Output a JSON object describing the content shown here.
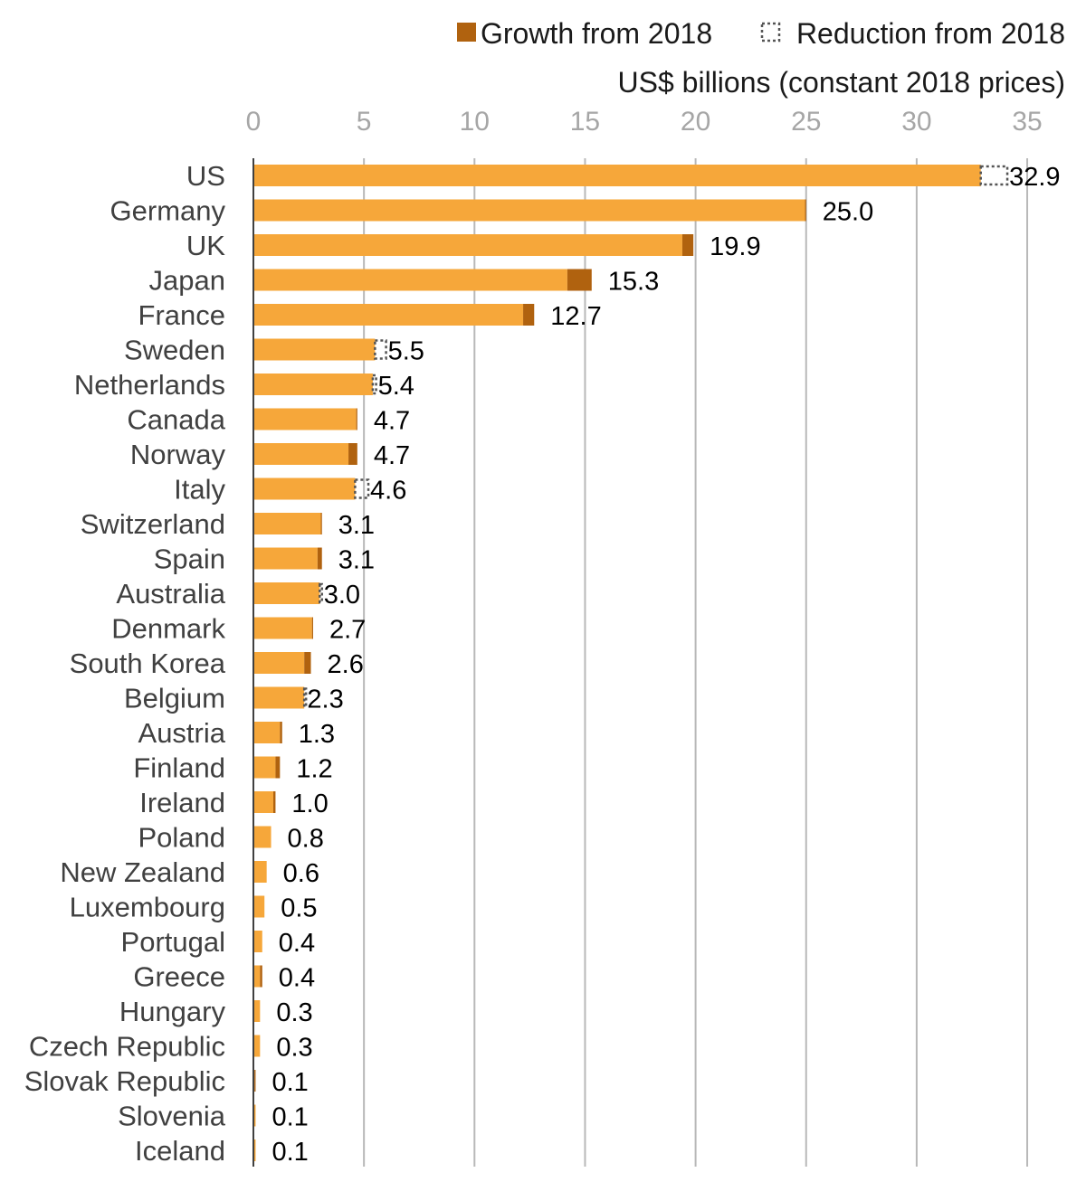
{
  "colors": {
    "base_bar": "#f6a73a",
    "growth": "#b0620f",
    "reduction_outline": "#555555",
    "gridline": "#b8b8b8",
    "axis_line": "#404040",
    "tick_label": "#a6a6a6"
  },
  "chart_data": {
    "type": "bar",
    "orientation": "horizontal",
    "stacked": true,
    "unit_label": "US$ billions (constant 2018 prices)",
    "xlim": [
      0,
      35
    ],
    "xticks": [
      0,
      5,
      10,
      15,
      20,
      25,
      30,
      35
    ],
    "grid": true,
    "legend_position": "top-right",
    "legend": [
      {
        "label": "Growth from 2018",
        "style": "filled"
      },
      {
        "label": "Reduction from 2018",
        "style": "dotted-outline"
      }
    ],
    "categories": [
      "US",
      "Germany",
      "UK",
      "Japan",
      "France",
      "Sweden",
      "Netherlands",
      "Canada",
      "Norway",
      "Italy",
      "Switzerland",
      "Spain",
      "Australia",
      "Denmark",
      "South Korea",
      "Belgium",
      "Austria",
      "Finland",
      "Ireland",
      "Poland",
      "New Zealand",
      "Luxembourg",
      "Portugal",
      "Greece",
      "Hungary",
      "Czech Republic",
      "Slovak Republic",
      "Slovenia",
      "Iceland"
    ],
    "totals": [
      32.9,
      25.0,
      19.9,
      15.3,
      12.7,
      5.5,
      5.4,
      4.7,
      4.7,
      4.6,
      3.1,
      3.1,
      3.0,
      2.7,
      2.6,
      2.3,
      1.3,
      1.2,
      1.0,
      0.8,
      0.6,
      0.5,
      0.4,
      0.4,
      0.3,
      0.3,
      0.1,
      0.1,
      0.1
    ],
    "value_labels": [
      "32.9",
      "25.0",
      "19.9",
      "15.3",
      "12.7",
      "5.5",
      "5.4",
      "4.7",
      "4.7",
      "4.6",
      "3.1",
      "3.1",
      "3.0",
      "2.7",
      "2.6",
      "2.3",
      "1.3",
      "1.2",
      "1.0",
      "0.8",
      "0.6",
      "0.5",
      "0.4",
      "0.4",
      "0.3",
      "0.3",
      "0.1",
      "0.1",
      "0.1"
    ],
    "growth_from_2018": [
      0,
      0.05,
      0.5,
      1.1,
      0.5,
      0,
      0,
      0.05,
      0.4,
      0,
      0.05,
      0.2,
      0,
      0.05,
      0.3,
      0,
      0.1,
      0.2,
      0.1,
      0,
      0,
      0,
      0,
      0.1,
      0,
      0,
      0.05,
      0,
      0
    ],
    "reduction_from_2018": [
      1.2,
      0,
      0,
      0,
      0,
      0.5,
      0.15,
      0,
      0,
      0.6,
      0,
      0,
      0.1,
      0,
      0,
      0.05,
      0,
      0,
      0,
      0,
      0,
      0,
      0,
      0,
      0,
      0,
      0,
      0,
      0
    ]
  }
}
